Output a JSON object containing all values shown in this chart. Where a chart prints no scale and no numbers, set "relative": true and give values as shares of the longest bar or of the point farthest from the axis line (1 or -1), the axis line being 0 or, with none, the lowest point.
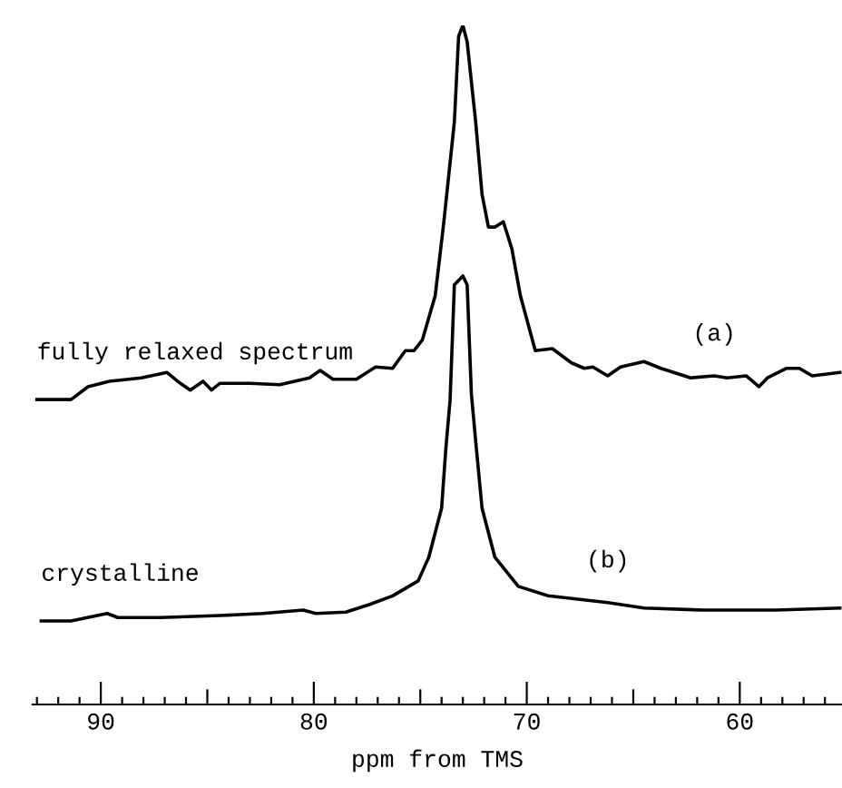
{
  "chart_data": {
    "type": "line",
    "relative": true,
    "xlabel": "ppm from TMS",
    "xlim": [
      93.2,
      55.2
    ],
    "xticks": [
      {
        "value": 93,
        "label": null
      },
      {
        "value": 92,
        "label": null
      },
      {
        "value": 91,
        "label": null
      },
      90,
      {
        "value": 89,
        "label": null
      },
      {
        "value": 88,
        "label": null
      },
      {
        "value": 87,
        "label": null
      },
      {
        "value": 86,
        "label": null
      },
      {
        "value": 85,
        "label": null
      },
      {
        "value": 84,
        "label": null
      },
      {
        "value": 83,
        "label": null
      },
      {
        "value": 82,
        "label": null
      },
      {
        "value": 81,
        "label": null
      },
      80,
      {
        "value": 79,
        "label": null
      },
      {
        "value": 78,
        "label": null
      },
      {
        "value": 77,
        "label": null
      },
      {
        "value": 76,
        "label": null
      },
      {
        "value": 75,
        "label": null
      },
      {
        "value": 74,
        "label": null
      },
      {
        "value": 73,
        "label": null
      },
      {
        "value": 72,
        "label": null
      },
      {
        "value": 71,
        "label": null
      },
      70,
      {
        "value": 69,
        "label": null
      },
      {
        "value": 68,
        "label": null
      },
      {
        "value": 67,
        "label": null
      },
      {
        "value": 66,
        "label": null
      },
      {
        "value": 65,
        "label": null
      },
      {
        "value": 64,
        "label": null
      },
      {
        "value": 63,
        "label": null
      },
      {
        "value": 62,
        "label": null
      },
      {
        "value": 61,
        "label": null
      },
      60,
      {
        "value": 59,
        "label": null
      },
      {
        "value": 58,
        "label": null
      },
      {
        "value": 57,
        "label": null
      },
      {
        "value": 56,
        "label": null
      }
    ],
    "grid": false,
    "tick_labels": "x",
    "marker": "none",
    "line_style": "solid",
    "series": [
      {
        "name": "fully relaxed spectrum",
        "color": "#000000",
        "x": [
          93.0,
          91.4,
          90.6,
          89.6,
          88.1,
          86.9,
          86.4,
          85.8,
          85.2,
          84.8,
          84.4,
          83.0,
          81.6,
          80.2,
          79.7,
          79.1,
          78.0,
          77.1,
          76.3,
          75.7,
          75.3,
          74.9,
          74.3,
          73.9,
          73.4,
          73.2,
          73.0,
          72.8,
          72.4,
          72.1,
          71.8,
          71.5,
          71.1,
          70.7,
          70.3,
          69.6,
          68.8,
          67.9,
          67.3,
          66.9,
          66.2,
          65.6,
          64.5,
          63.7,
          63.1,
          62.3,
          61.2,
          60.6,
          59.7,
          59.1,
          58.7,
          57.8,
          57.2,
          56.6,
          55.3
        ],
        "values": [
          0.449,
          0.449,
          0.468,
          0.476,
          0.481,
          0.489,
          0.476,
          0.463,
          0.476,
          0.463,
          0.473,
          0.473,
          0.471,
          0.481,
          0.492,
          0.479,
          0.479,
          0.497,
          0.495,
          0.521,
          0.521,
          0.537,
          0.602,
          0.709,
          0.858,
          0.984,
          1.0,
          0.976,
          0.858,
          0.751,
          0.703,
          0.703,
          0.711,
          0.671,
          0.602,
          0.521,
          0.524,
          0.503,
          0.495,
          0.497,
          0.484,
          0.497,
          0.505,
          0.495,
          0.489,
          0.481,
          0.484,
          0.481,
          0.484,
          0.468,
          0.481,
          0.495,
          0.495,
          0.484,
          0.489
        ]
      },
      {
        "name": "crystalline",
        "color": "#000000",
        "x": [
          92.8,
          91.4,
          89.7,
          89.2,
          87.2,
          84.4,
          82.4,
          80.5,
          79.9,
          78.5,
          77.4,
          76.3,
          75.1,
          74.6,
          74.0,
          73.8,
          73.6,
          73.4,
          73.0,
          72.8,
          72.6,
          72.4,
          72.1,
          71.5,
          70.4,
          69.0,
          66.2,
          64.5,
          61.7,
          58.3,
          55.3
        ],
        "values": [
          0.123,
          0.123,
          0.134,
          0.128,
          0.128,
          0.131,
          0.134,
          0.139,
          0.134,
          0.136,
          0.147,
          0.16,
          0.182,
          0.217,
          0.289,
          0.377,
          0.449,
          0.618,
          0.631,
          0.618,
          0.457,
          0.388,
          0.289,
          0.217,
          0.174,
          0.16,
          0.15,
          0.142,
          0.139,
          0.139,
          0.142
        ]
      }
    ],
    "annotations": [
      "(a)",
      "(b)"
    ]
  }
}
